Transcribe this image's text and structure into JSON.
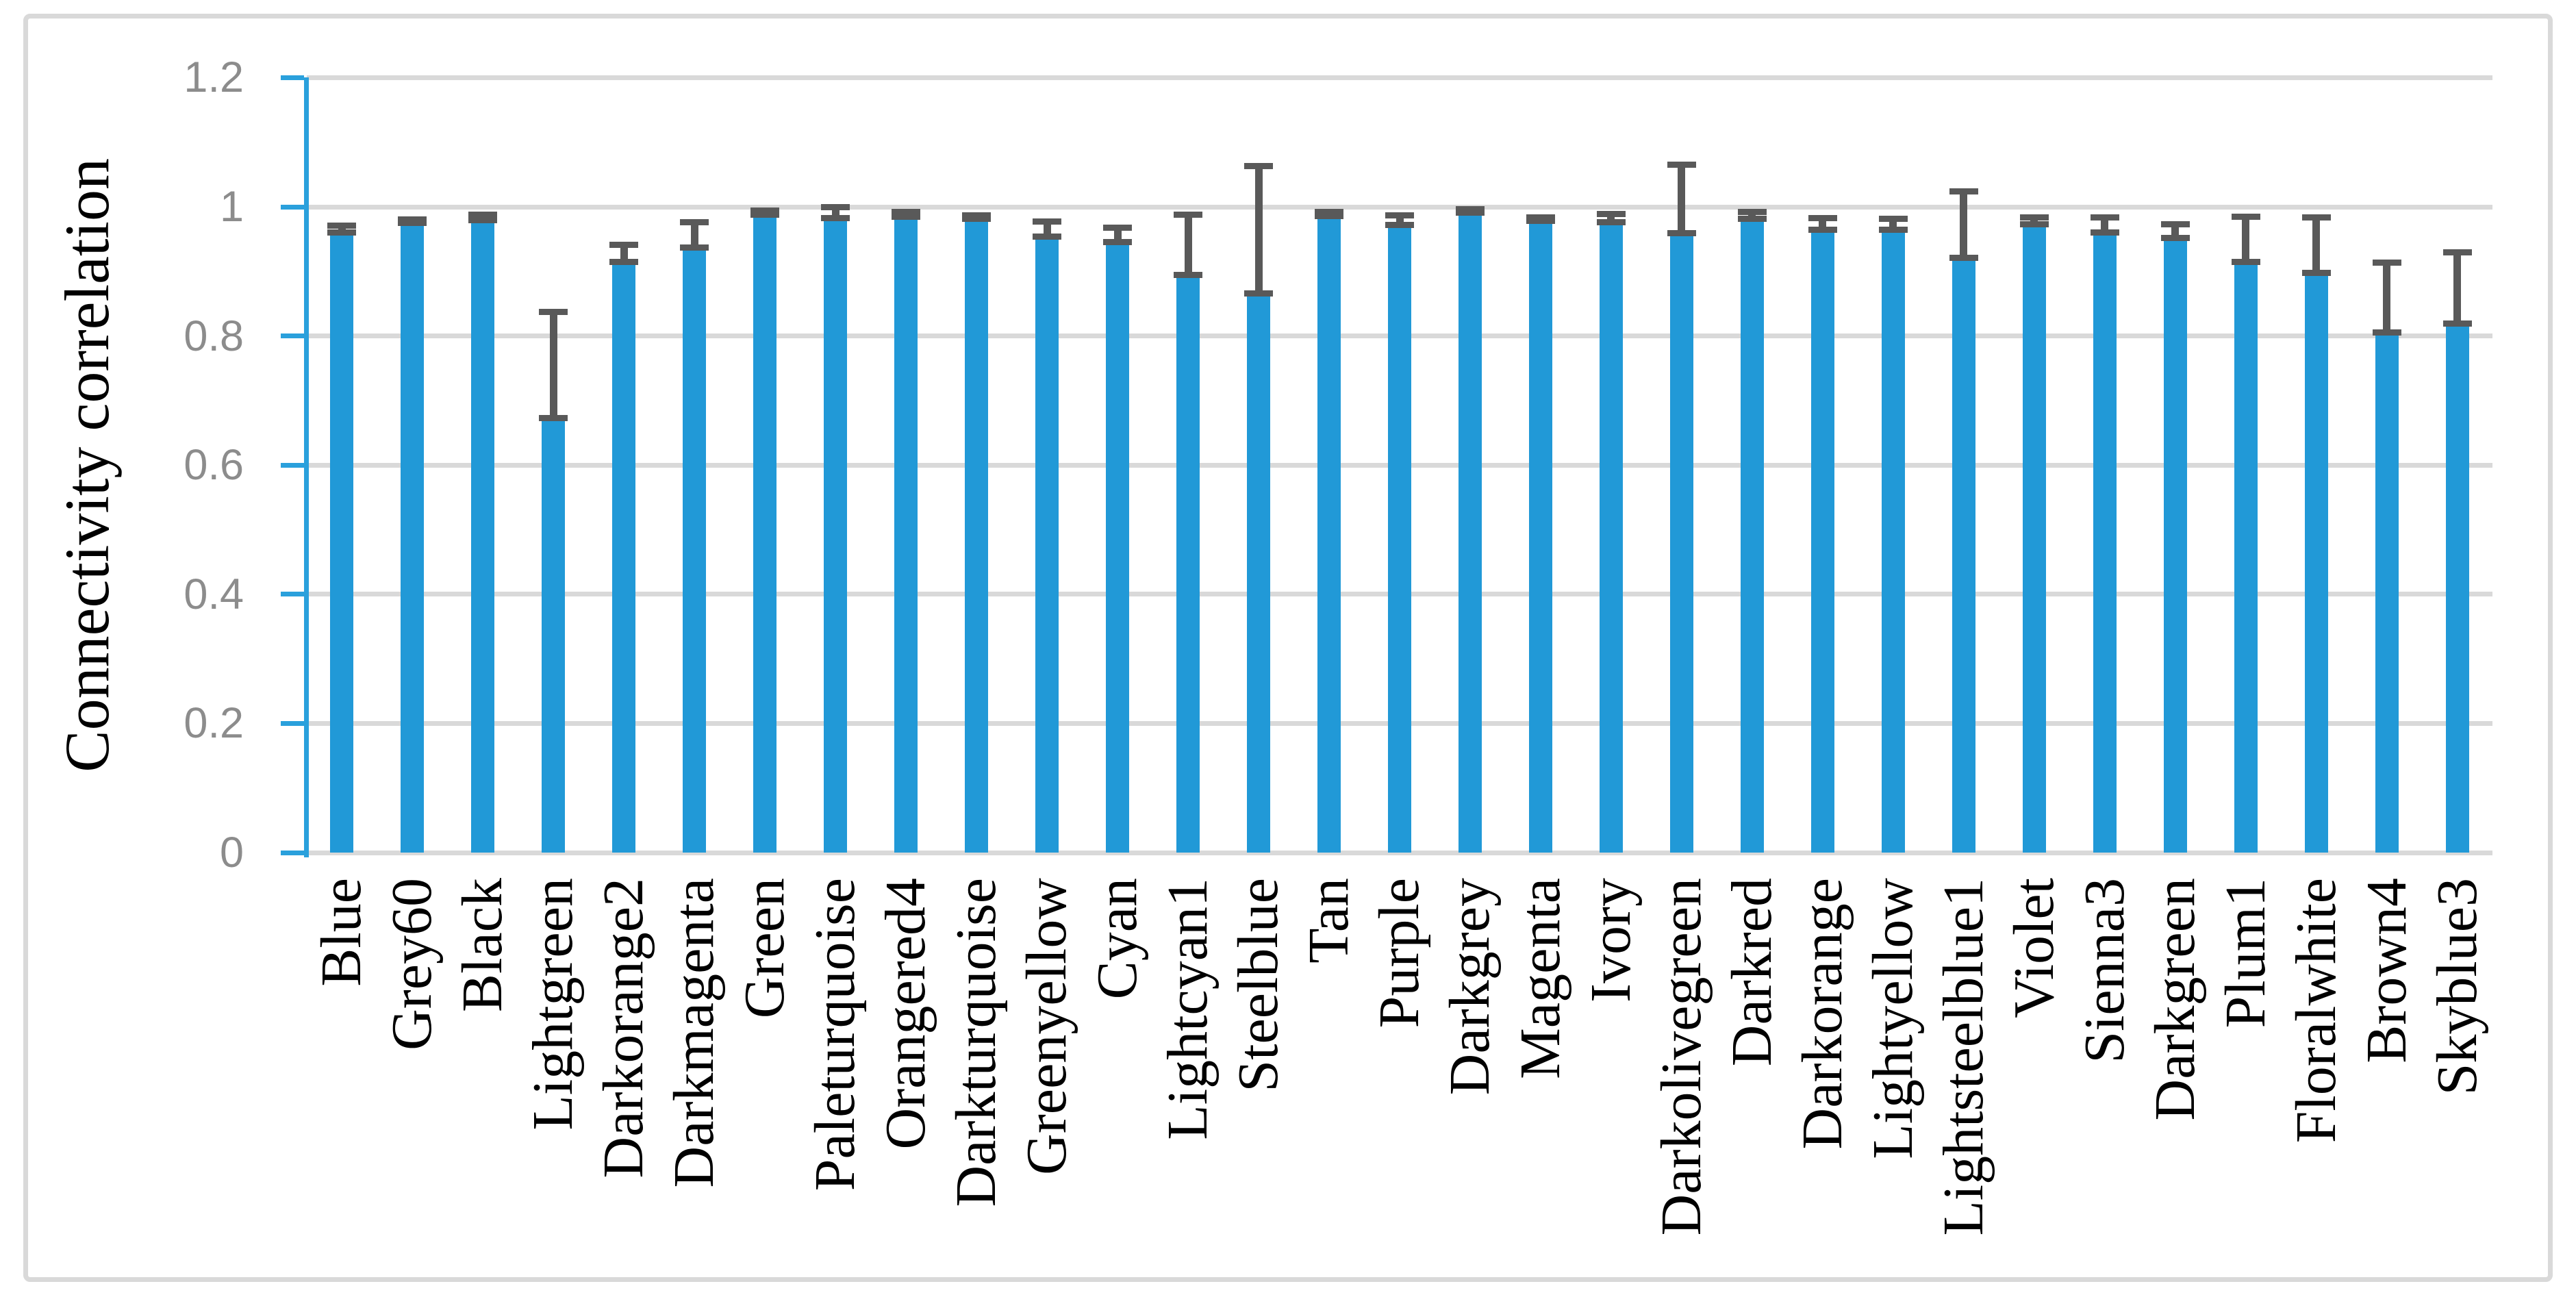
{
  "figure": {
    "background_color": "#ffffff",
    "border_color": "#d9d9d9"
  },
  "chart_data": {
    "type": "bar",
    "title": "",
    "xlabel": "",
    "ylabel": "Connectivity correlation",
    "ylim": [
      0,
      1.2
    ],
    "grid": true,
    "legend": false,
    "bar_color": "#2199d7",
    "axis_color": "#2aa0dc",
    "gridline_color": "#d9d9d9",
    "error_bar_color": "#595959",
    "tick_label_color": "#8c8c8c",
    "yticks": [
      {
        "value": 0,
        "label": "0"
      },
      {
        "value": 0.2,
        "label": "0.2"
      },
      {
        "value": 0.4,
        "label": "0.4"
      },
      {
        "value": 0.6,
        "label": "0.6"
      },
      {
        "value": 0.8,
        "label": "0.8"
      },
      {
        "value": 1,
        "label": "1"
      },
      {
        "value": 1.2,
        "label": "1.2"
      }
    ],
    "categories": [
      "Blue",
      "Grey60",
      "Black",
      "Lightgreen",
      "Darkorange2",
      "Darkmagenta",
      "Green",
      "Paleturquoise",
      "Orangered4",
      "Darkturquoise",
      "Greenyellow",
      "Cyan",
      "Lightcyan1",
      "Steelblue",
      "Tan",
      "Purple",
      "Darkgrey",
      "Magenta",
      "Ivory",
      "Darkolivegreen",
      "Darkred",
      "Darkorange",
      "Lightyellow",
      "Lightsteelblue1",
      "Violet",
      "Sienna3",
      "Darkgreen",
      "Plum1",
      "Floralwhite",
      "Brown4",
      "Skyblue3"
    ],
    "series": [
      {
        "name": "Connectivity correlation",
        "values": [
          0.96,
          0.975,
          0.979,
          0.673,
          0.915,
          0.937,
          0.988,
          0.983,
          0.985,
          0.981,
          0.954,
          0.945,
          0.894,
          0.866,
          0.986,
          0.972,
          0.991,
          0.978,
          0.976,
          0.959,
          0.981,
          0.965,
          0.964,
          0.921,
          0.973,
          0.96,
          0.952,
          0.915,
          0.898,
          0.805,
          0.819
        ],
        "error_upper_absolute": [
          0.971,
          0.98,
          0.988,
          0.837,
          0.941,
          0.976,
          0.994,
          0.999,
          0.992,
          0.987,
          0.977,
          0.968,
          0.988,
          1.063,
          0.992,
          0.987,
          0.996,
          0.984,
          0.989,
          1.065,
          0.992,
          0.983,
          0.981,
          1.024,
          0.984,
          0.984,
          0.973,
          0.985,
          0.984,
          0.914,
          0.93
        ]
      }
    ]
  }
}
